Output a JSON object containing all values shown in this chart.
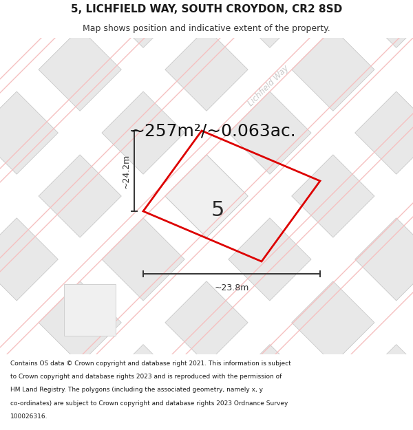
{
  "title_line1": "5, LICHFIELD WAY, SOUTH CROYDON, CR2 8SD",
  "title_line2": "Map shows position and indicative extent of the property.",
  "area_text": "~257m²/~0.063ac.",
  "dim_width": "~23.8m",
  "dim_height": "~24.2m",
  "plot_number": "5",
  "footer_lines": [
    "Contains OS data © Crown copyright and database right 2021. This information is subject",
    "to Crown copyright and database rights 2023 and is reproduced with the permission of",
    "HM Land Registry. The polygons (including the associated geometry, namely x, y",
    "co-ordinates) are subject to Crown copyright and database rights 2023 Ordnance Survey",
    "100026316."
  ],
  "map_bg": "#f2f2f2",
  "block_fill": "#e8e8e8",
  "block_edge": "#c8c8c8",
  "road_line_color": "#f5c0c0",
  "road_thick_color": "#f0aaaa",
  "prop_edge_color": "#dd0000",
  "dim_color": "#333333",
  "road_label_color": "#c0c0c0",
  "white_block_fill": "#f8f8f8",
  "title_fontsize": 11,
  "subtitle_fontsize": 9,
  "area_fontsize": 18,
  "plot_num_fontsize": 22,
  "dim_fontsize": 9,
  "footer_fontsize": 6.5
}
